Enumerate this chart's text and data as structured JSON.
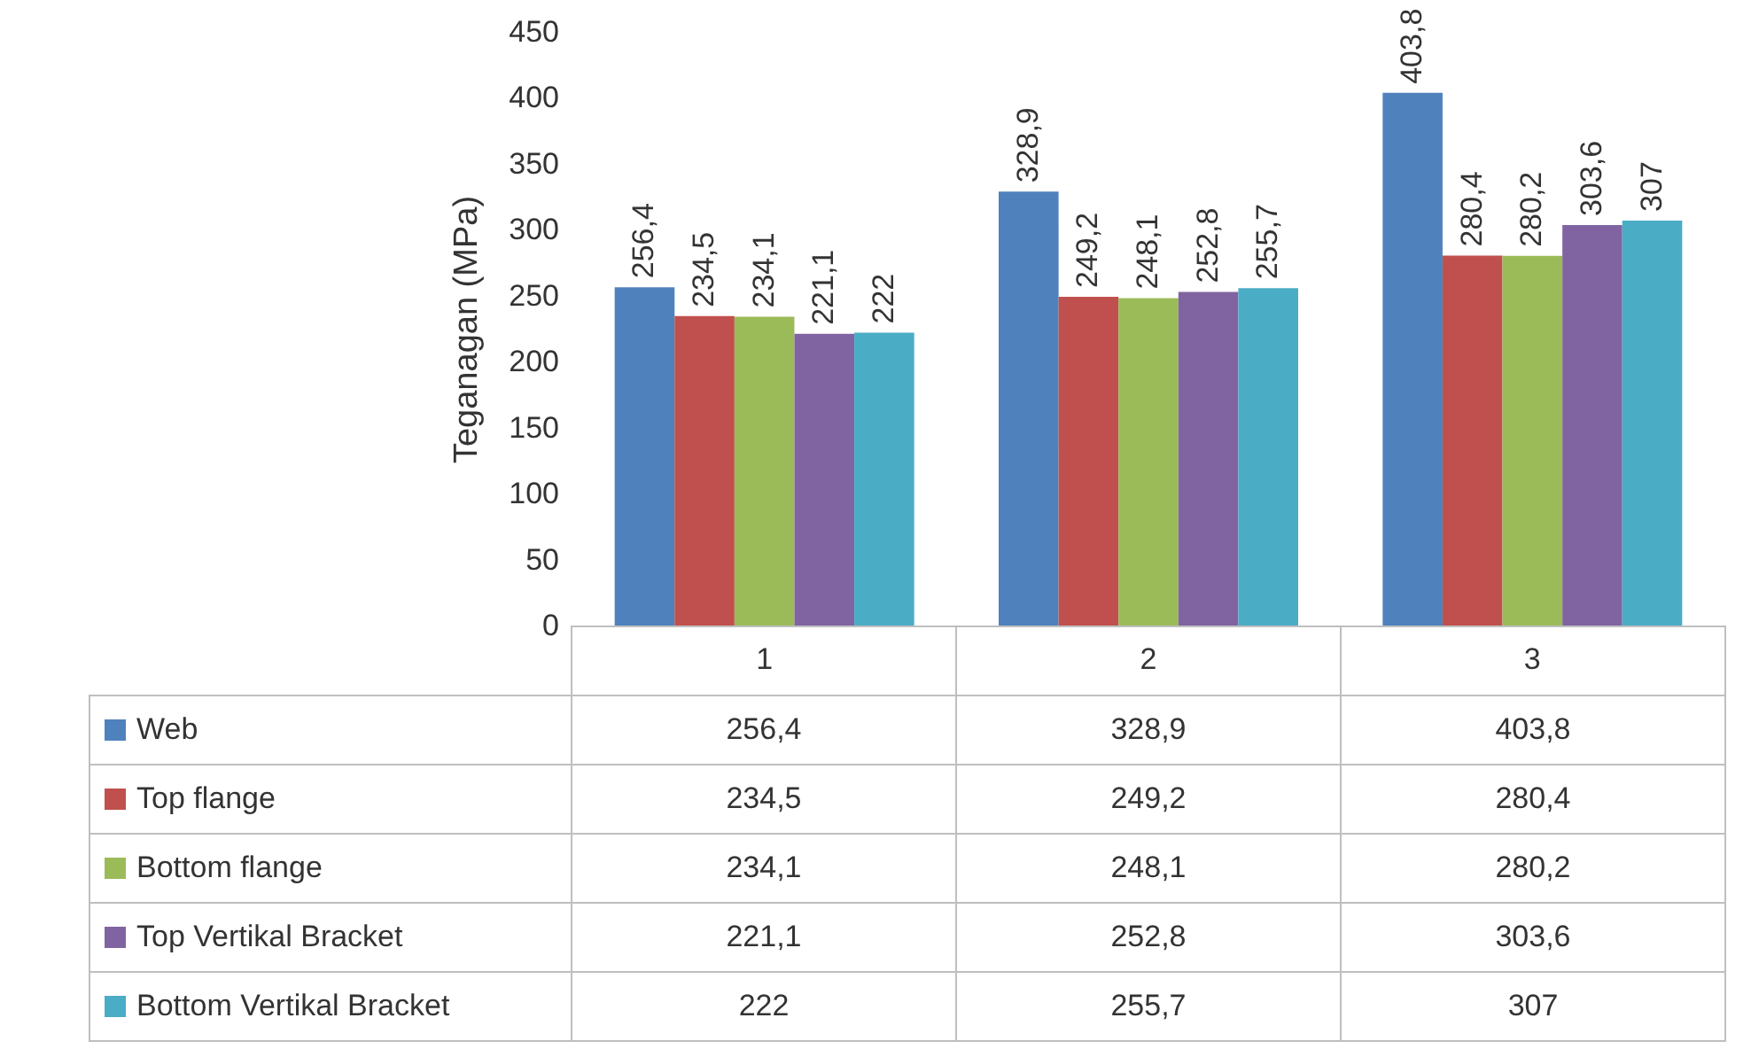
{
  "chart_data": {
    "type": "bar",
    "ylabel": "Teganagan (MPa)",
    "categories": [
      "1",
      "2",
      "3"
    ],
    "ylim": [
      0,
      450
    ],
    "yticks": [
      0,
      50,
      100,
      150,
      200,
      250,
      300,
      350,
      400,
      450
    ],
    "legend": "bottom",
    "data_labels": true,
    "series": [
      {
        "name": "Web",
        "color": "#4f81bd",
        "values": [
          256.4,
          328.9,
          403.8
        ],
        "value_labels": [
          "256,4",
          "328,9",
          "403,8"
        ]
      },
      {
        "name": "Top flange",
        "color": "#c0504d",
        "values": [
          234.5,
          249.2,
          280.4
        ],
        "value_labels": [
          "234,5",
          "249,2",
          "280,4"
        ]
      },
      {
        "name": "Bottom flange",
        "color": "#9bbb59",
        "values": [
          234.1,
          248.1,
          280.2
        ],
        "value_labels": [
          "234,1",
          "248,1",
          "280,2"
        ]
      },
      {
        "name": "Top Vertikal Bracket",
        "color": "#8064a2",
        "values": [
          221.1,
          252.8,
          303.6
        ],
        "value_labels": [
          "221,1",
          "252,8",
          "303,6"
        ]
      },
      {
        "name": "Bottom Vertikal Bracket",
        "color": "#4bacc6",
        "values": [
          222,
          255.7,
          307
        ],
        "value_labels": [
          "222",
          "255,7",
          "307"
        ]
      }
    ]
  }
}
